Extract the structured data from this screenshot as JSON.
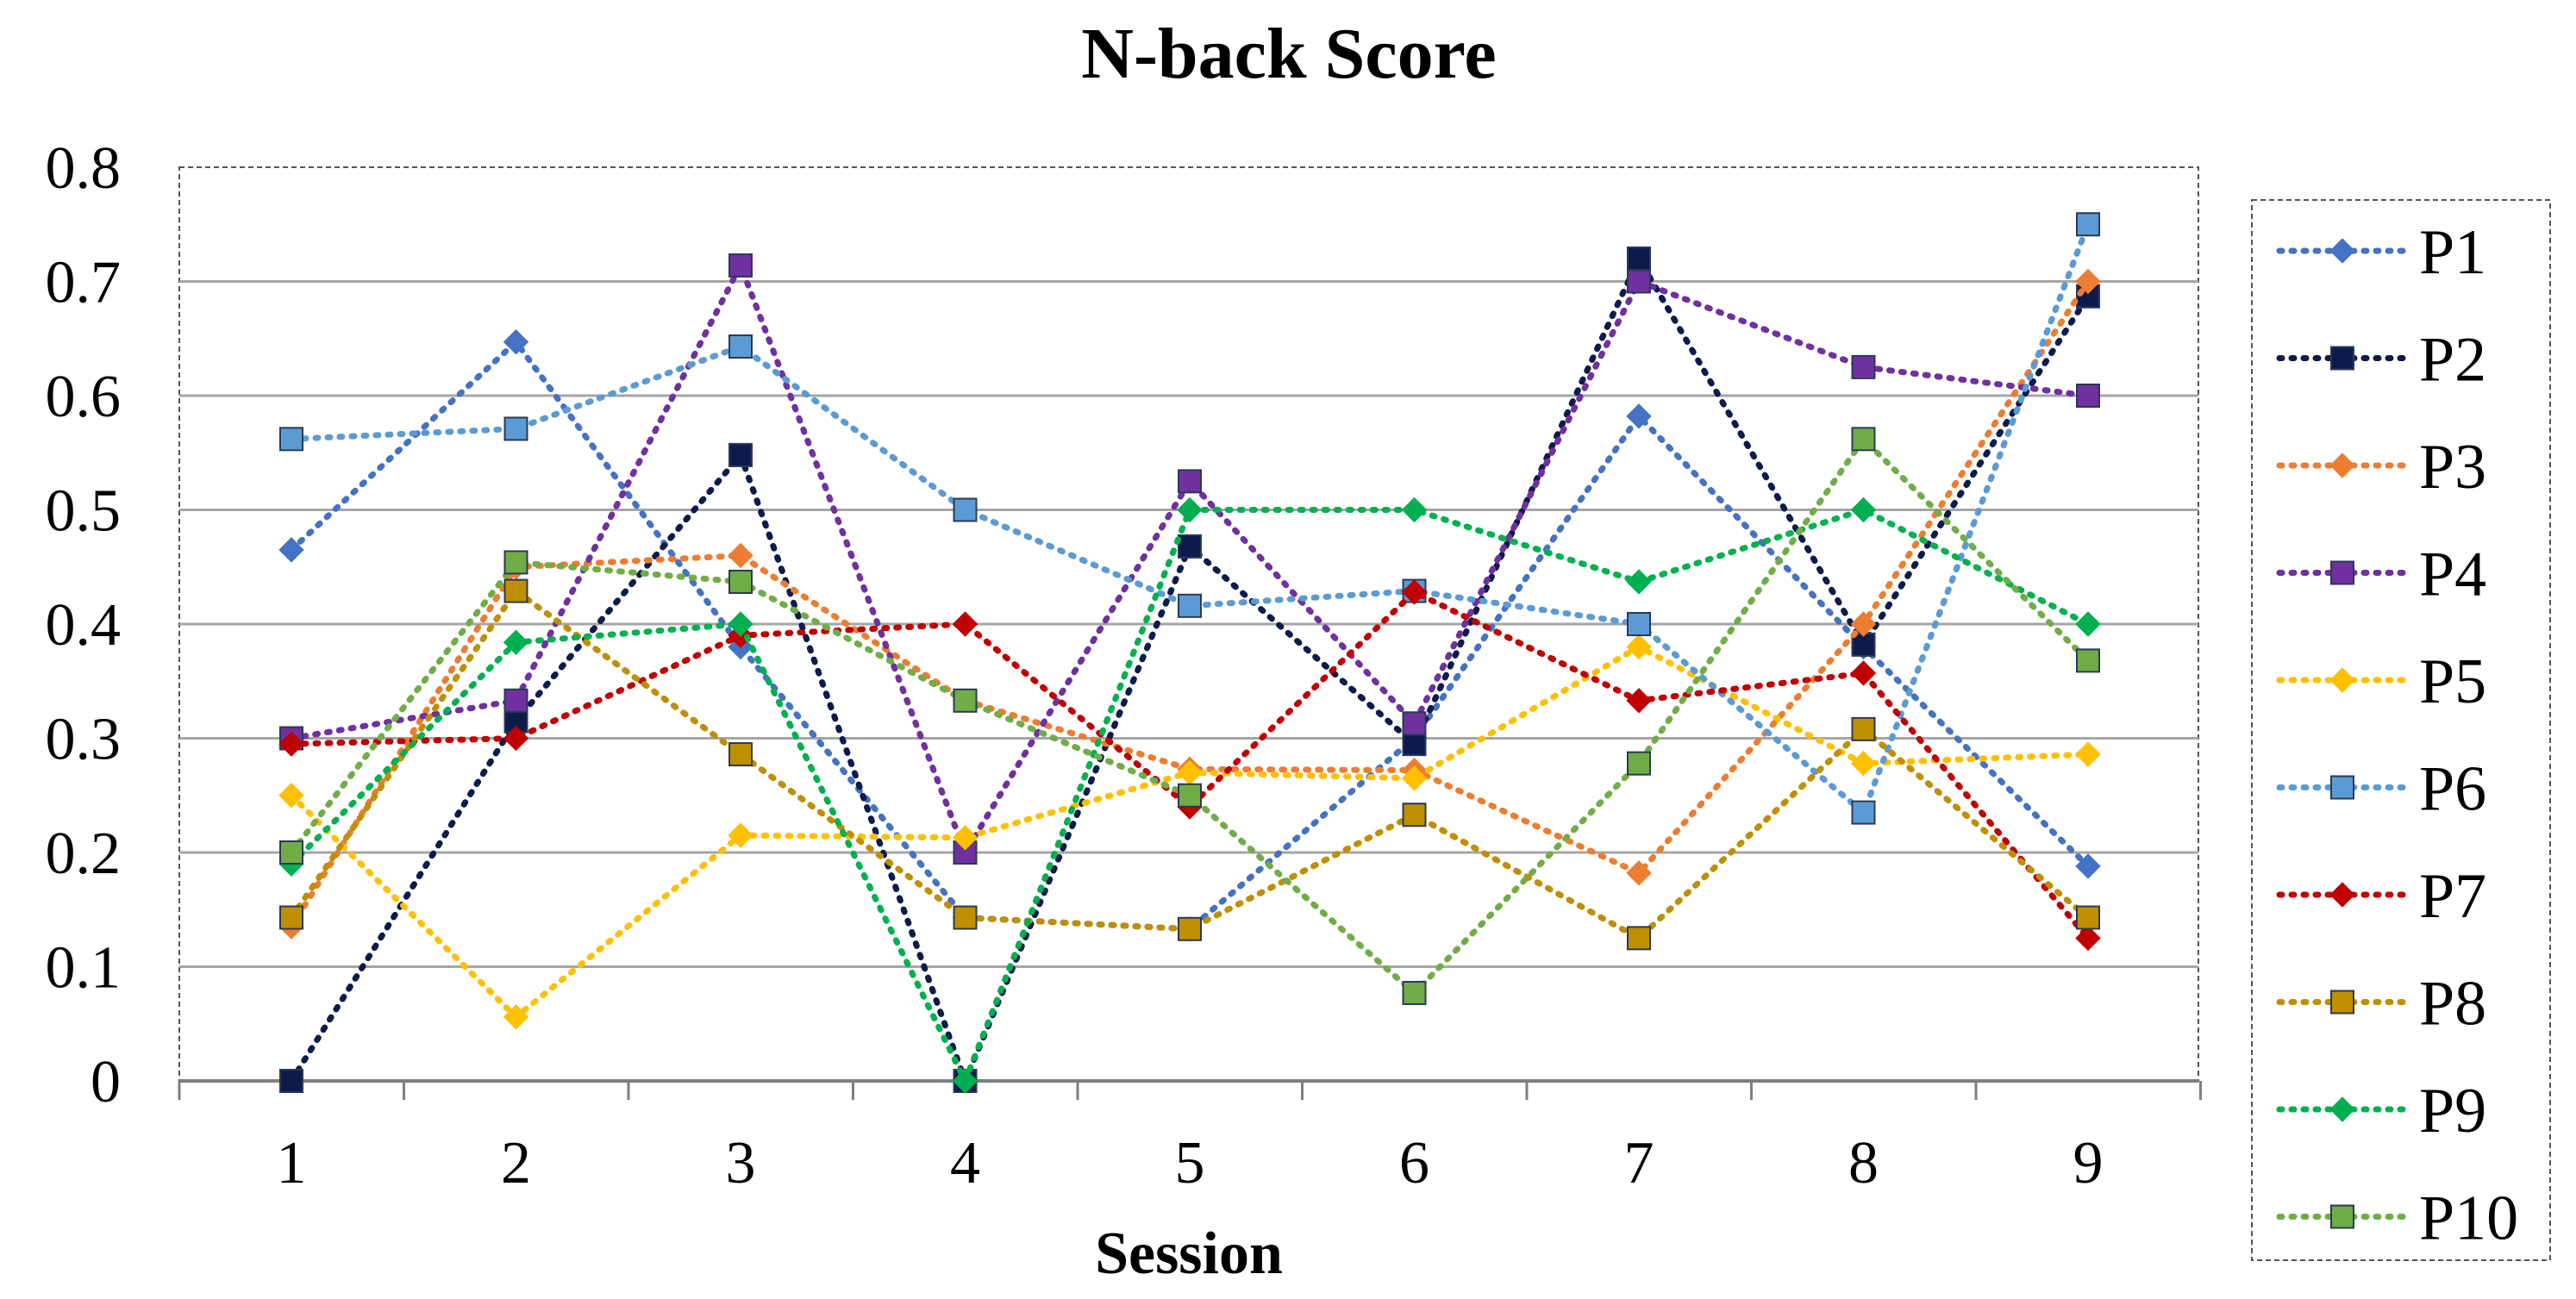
{
  "chart_data": {
    "type": "line",
    "title": "N-back Score",
    "xlabel": "Session",
    "ylabel": "",
    "x": [
      1,
      2,
      3,
      4,
      5,
      6,
      7,
      8,
      9
    ],
    "x_tick_labels": [
      "1",
      "2",
      "3",
      "4",
      "5",
      "6",
      "7",
      "8",
      "9"
    ],
    "y_tick_labels": [
      "0",
      "0.1",
      "0.2",
      "0.3",
      "0.4",
      "0.5",
      "0.6",
      "0.7",
      "0.8"
    ],
    "ylim": [
      0,
      0.8
    ],
    "grid": "horizontal",
    "legend_position": "right",
    "line_style": "dotted",
    "series": [
      {
        "name": "P1",
        "color": "#4472C4",
        "marker": "diamond",
        "values": [
          0.465,
          0.647,
          0.38,
          0.143,
          0.133,
          0.3,
          0.582,
          0.38,
          0.188
        ]
      },
      {
        "name": "P2",
        "color": "#0D1B4C",
        "marker": "square",
        "values": [
          0.0,
          0.315,
          0.548,
          0.0,
          0.468,
          0.295,
          0.72,
          0.382,
          0.687
        ]
      },
      {
        "name": "P3",
        "color": "#ED7D31",
        "marker": "diamond",
        "values": [
          0.135,
          0.45,
          0.46,
          0.333,
          0.273,
          0.272,
          0.182,
          0.4,
          0.7
        ]
      },
      {
        "name": "P4",
        "color": "#7030A0",
        "marker": "square",
        "values": [
          0.3,
          0.333,
          0.714,
          0.2,
          0.525,
          0.313,
          0.7,
          0.625,
          0.6
        ]
      },
      {
        "name": "P5",
        "color": "#FFC000",
        "marker": "diamond",
        "values": [
          0.25,
          0.056,
          0.215,
          0.213,
          0.27,
          0.265,
          0.38,
          0.278,
          0.286
        ]
      },
      {
        "name": "P6",
        "color": "#5B9BD5",
        "marker": "square",
        "values": [
          0.562,
          0.571,
          0.643,
          0.5,
          0.416,
          0.429,
          0.4,
          0.235,
          0.75
        ]
      },
      {
        "name": "P7",
        "color": "#C00000",
        "marker": "diamond",
        "values": [
          0.295,
          0.3,
          0.39,
          0.4,
          0.24,
          0.428,
          0.333,
          0.357,
          0.125
        ]
      },
      {
        "name": "P8",
        "color": "#BF8F00",
        "marker": "square",
        "values": [
          0.143,
          0.429,
          0.286,
          0.143,
          0.133,
          0.233,
          0.125,
          0.308,
          0.143
        ]
      },
      {
        "name": "P9",
        "color": "#00B050",
        "marker": "diamond",
        "values": [
          0.19,
          0.384,
          0.4,
          0.0,
          0.5,
          0.5,
          0.437,
          0.5,
          0.4
        ]
      },
      {
        "name": "P10",
        "color": "#70AD47",
        "marker": "square",
        "values": [
          0.2,
          0.454,
          0.437,
          0.333,
          0.25,
          0.077,
          0.278,
          0.562,
          0.368
        ]
      }
    ]
  }
}
